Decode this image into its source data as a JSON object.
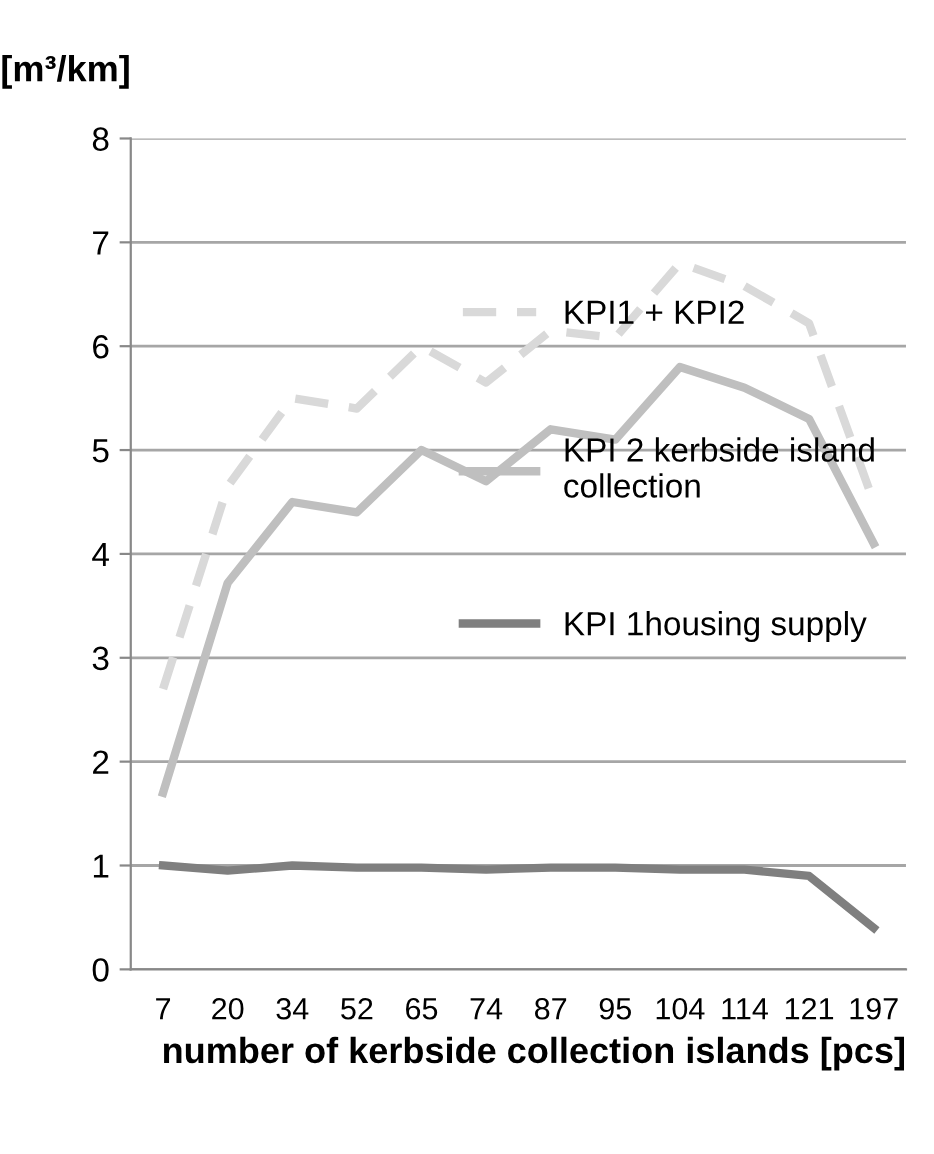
{
  "chart_data": {
    "type": "line",
    "ylabel": "[m³/km]",
    "xlabel": "number of kerbside collection islands [pcs]",
    "categories": [
      "7",
      "20",
      "34",
      "52",
      "65",
      "74",
      "87",
      "95",
      "104",
      "114",
      "121",
      "197"
    ],
    "series": [
      {
        "name": "KPI1 + KPI2",
        "color": "#d9d9d9",
        "line_style": "dashed",
        "values": [
          2.7,
          4.65,
          5.5,
          5.4,
          6.0,
          5.65,
          6.15,
          6.08,
          6.8,
          6.58,
          6.22,
          4.5
        ]
      },
      {
        "name": "KPI 2 kerbside island\ncollection",
        "color": "#bfbfbf",
        "line_style": "solid",
        "values": [
          1.7,
          3.72,
          4.5,
          4.4,
          5.0,
          4.7,
          5.2,
          5.1,
          5.8,
          5.6,
          5.3,
          4.1
        ]
      },
      {
        "name": "KPI 1housing supply",
        "color": "#7f7f7f",
        "line_style": "solid",
        "values": [
          1.0,
          0.95,
          1.0,
          0.98,
          0.98,
          0.96,
          0.98,
          0.98,
          0.96,
          0.96,
          0.9,
          0.4
        ]
      }
    ],
    "ylim": [
      0,
      8
    ],
    "yticks": [
      0,
      1,
      2,
      3,
      4,
      5,
      6,
      7,
      8
    ],
    "grid": "y",
    "legend": "center right",
    "marker": "none"
  }
}
